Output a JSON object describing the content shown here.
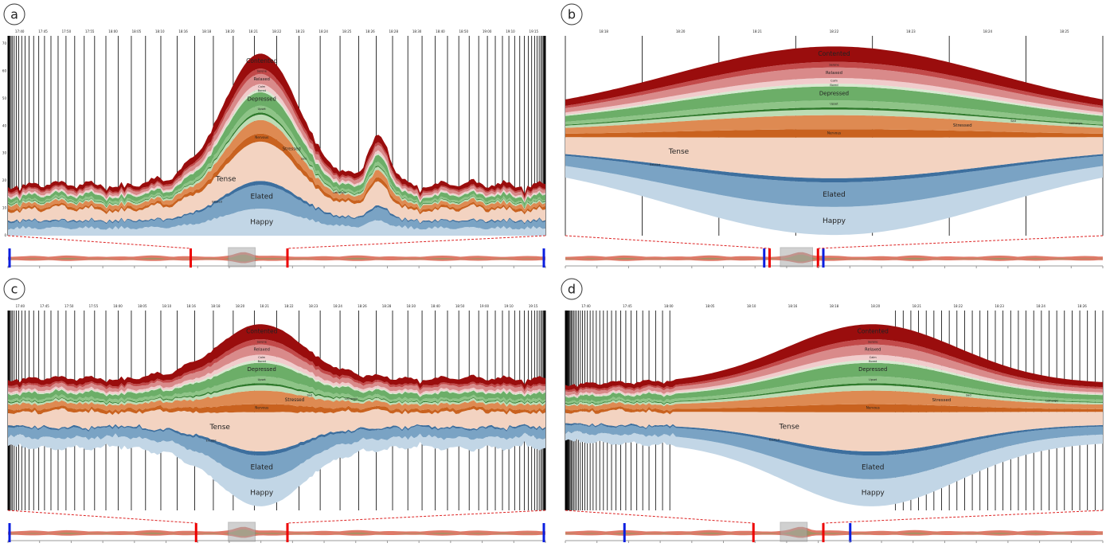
{
  "panels": [
    {
      "label": "a",
      "times": [
        "17:40",
        "17:45",
        "17:50",
        "17:55",
        "18:00",
        "18:05",
        "18:10",
        "18:16",
        "18:18",
        "18:20",
        "18:21",
        "18:22",
        "18:23",
        "18:24",
        "18:25",
        "18:26",
        "18:28",
        "18:30",
        "18:40",
        "18:50",
        "19:00",
        "19:10",
        "19:15"
      ],
      "axis_labels": [
        "0",
        "10",
        "20",
        "30",
        "40",
        "50",
        "60",
        "70"
      ],
      "layers": [
        "Happy",
        "Elated",
        "Excited",
        "Tense",
        "Nervous",
        "Stressed",
        "Sad",
        "Lethargic",
        "Upset",
        "Depressed",
        "Bored",
        "Calm",
        "Relaxed",
        "Serene",
        "Contented"
      ]
    },
    {
      "label": "b",
      "times": [
        "18:18",
        "18:20",
        "18:21",
        "18:22",
        "18:23",
        "18:24",
        "18:25"
      ],
      "axis_labels": [],
      "layers": [
        "Happy",
        "Elated",
        "Excited",
        "Tense",
        "Nervous",
        "Stressed",
        "Sad",
        "Lethargic",
        "Upset",
        "Depressed",
        "Bored",
        "Calm",
        "Relaxed",
        "Serene",
        "Contented"
      ]
    },
    {
      "label": "c",
      "times": [
        "17:40",
        "17:45",
        "17:50",
        "17:55",
        "18:00",
        "18:05",
        "18:10",
        "18:16",
        "18:18",
        "18:20",
        "18:21",
        "18:22",
        "18:23",
        "18:24",
        "18:26",
        "18:28",
        "18:30",
        "18:40",
        "18:50",
        "19:00",
        "19:10",
        "19:15"
      ],
      "axis_labels": [],
      "layers": [
        "Happy",
        "Elated",
        "Excited",
        "Tense",
        "Nervous",
        "Stressed",
        "Sad",
        "Lethargic",
        "Upset",
        "Depressed",
        "Bored",
        "Calm",
        "Relaxed",
        "Serene",
        "Contented"
      ]
    },
    {
      "label": "d",
      "times": [
        "17:40",
        "17:45",
        "18:00",
        "18:05",
        "18:10",
        "18:16",
        "18:18",
        "18:20",
        "18:21",
        "18:22",
        "18:23",
        "18:24",
        "18:26"
      ],
      "axis_labels": [],
      "layers": [
        "Happy",
        "Elated",
        "Excited",
        "Tense",
        "Nervous",
        "Stressed",
        "Sad",
        "Lethargic",
        "Upset",
        "Depressed",
        "Bored",
        "Calm",
        "Relaxed",
        "Serene",
        "Contented"
      ]
    }
  ]
}
